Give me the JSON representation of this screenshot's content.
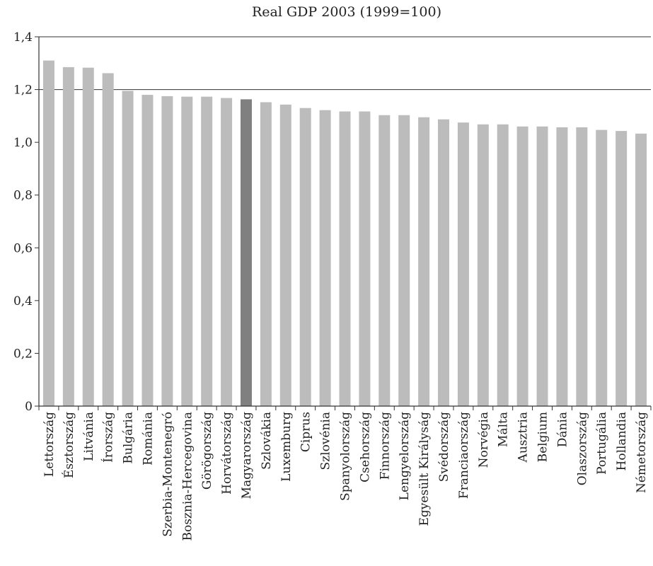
{
  "chart_data": {
    "type": "bar",
    "title": "Real GDP 2003 (1999=100)",
    "xlabel": "",
    "ylabel": "",
    "ylim": [
      0,
      1.4
    ],
    "yticks": [
      "0",
      "0,2",
      "0,4",
      "0,6",
      "0,8",
      "1,0",
      "1,2",
      "1,4"
    ],
    "grid": "horizontal at 1,2",
    "categories": [
      "Lettország",
      "Észtország",
      "Litvánia",
      "Írország",
      "Bulgária",
      "Románia",
      "Szerbia-Montenegró",
      "Bosznia-Hercegovina",
      "Görögország",
      "Horvátország",
      "Magyarország",
      "Szlovákia",
      "Luxemburg",
      "Ciprus",
      "Szlovénia",
      "Spanyolország",
      "Csehország",
      "Finnország",
      "Lengyelország",
      "Egyesült Királyság",
      "Svédország",
      "Franciaország",
      "Norvégia",
      "Málta",
      "Ausztria",
      "Belgium",
      "Dánia",
      "Olaszország",
      "Portugália",
      "Hollandia",
      "Németország"
    ],
    "values": [
      1.31,
      1.285,
      1.283,
      1.262,
      1.195,
      1.18,
      1.175,
      1.173,
      1.173,
      1.168,
      1.163,
      1.152,
      1.143,
      1.13,
      1.122,
      1.117,
      1.117,
      1.103,
      1.103,
      1.095,
      1.087,
      1.075,
      1.068,
      1.068,
      1.06,
      1.06,
      1.057,
      1.057,
      1.047,
      1.043,
      1.033
    ],
    "highlight_category": "Magyarország",
    "colors": {
      "bar": "#bcbcbc",
      "highlight": "#808080",
      "axis": "#333333"
    }
  }
}
